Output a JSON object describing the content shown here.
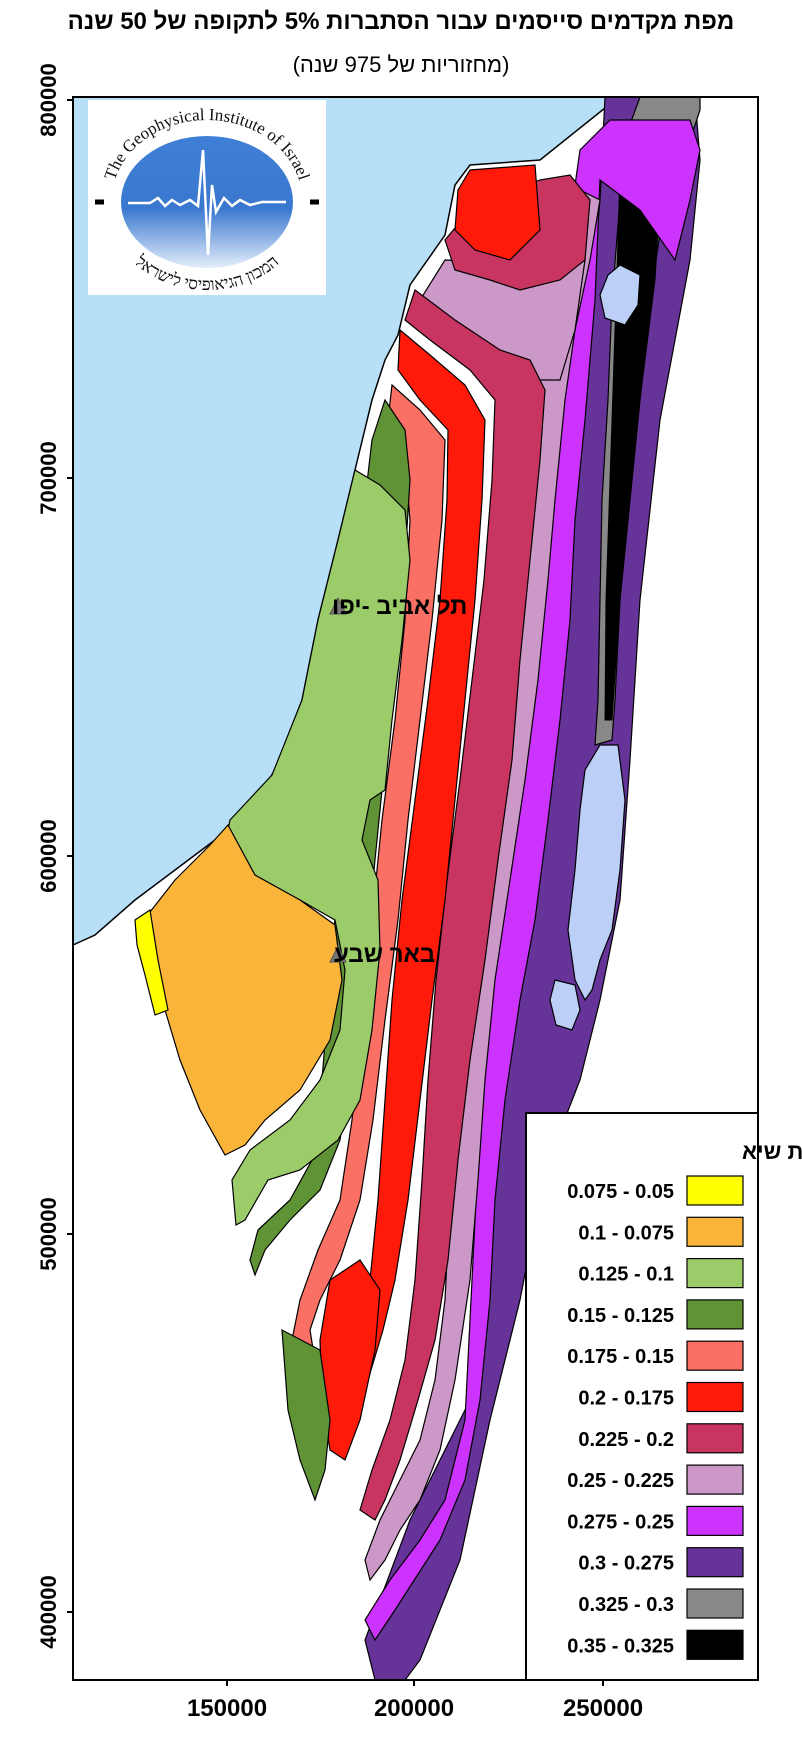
{
  "title": "מפת מקדמים סייסמים  עבור הסתברות 5% לתקופה של 50 שנה",
  "subtitle": "(מחזוריות של 975 שנה)",
  "axes": {
    "y_ticks": [
      "800000",
      "700000",
      "600000",
      "500000",
      "400000"
    ],
    "x_ticks": [
      "150000",
      "200000",
      "250000"
    ]
  },
  "cities": [
    {
      "name": "תל אביב -יפו",
      "x": 180000,
      "y": 666000
    },
    {
      "name": "באר שבע",
      "x": 180000,
      "y": 574000
    }
  ],
  "logo": {
    "text_en": "The Geophysical Institute of Israel",
    "text_he": "המכון הגיאופיסי לישראל"
  },
  "legend": {
    "title": "תאוצות שיא",
    "items": [
      {
        "label": "0.075 - 0.05",
        "color": "#ffff00"
      },
      {
        "label": "0.1 - 0.075",
        "color": "#fbb43a"
      },
      {
        "label": "0.125 - 0.1",
        "color": "#9ccb6a"
      },
      {
        "label": "0.15 - 0.125",
        "color": "#5f9336"
      },
      {
        "label": "0.175 - 0.15",
        "color": "#fb7064"
      },
      {
        "label": "0.2 - 0.175",
        "color": "#ff1a0a"
      },
      {
        "label": "0.225 - 0.2",
        "color": "#c93561"
      },
      {
        "label": "0.25 - 0.225",
        "color": "#cc98c8"
      },
      {
        "label": "0.275 - 0.25",
        "color": "#cc33ff"
      },
      {
        "label": "0.3 - 0.275",
        "color": "#663399"
      },
      {
        "label": "0.325 - 0.3",
        "color": "#888888"
      },
      {
        "label": "0.35 - 0.325",
        "color": "#000000"
      }
    ]
  },
  "colors": {
    "sea": "#b7e0f8",
    "lake": "#bbcff7"
  }
}
